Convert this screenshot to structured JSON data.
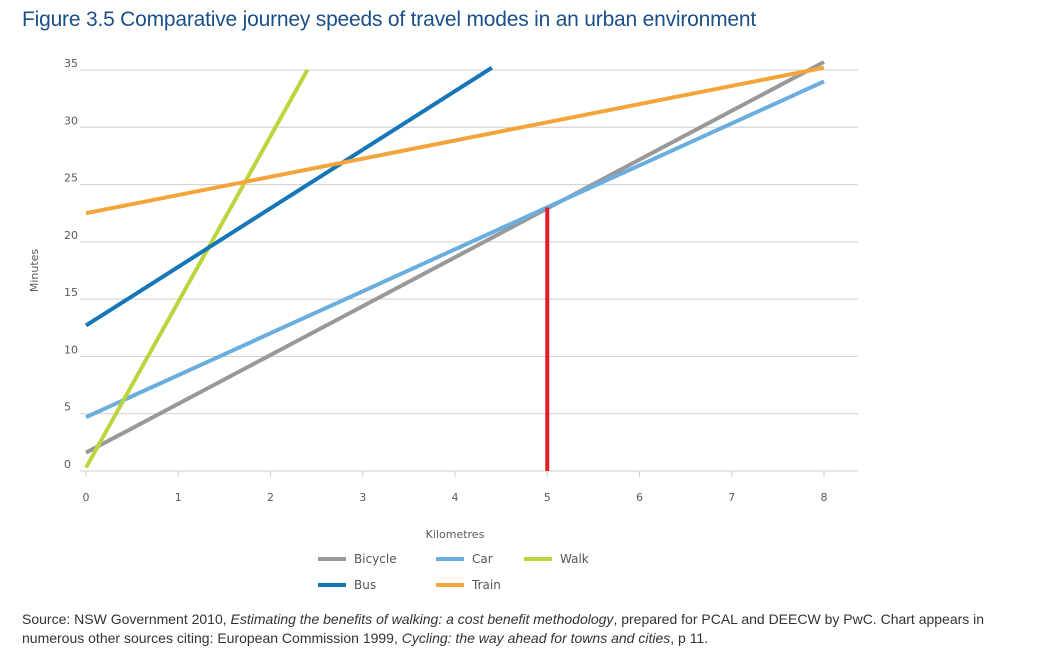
{
  "title": "Figure 3.5 Comparative journey speeds of travel modes in an urban environment",
  "source": {
    "prefix": "Source: NSW Government 2010, ",
    "italic1": "Estimating the benefits of walking: a cost benefit methodology",
    "middle": ", prepared for PCAL and DEECW by PwC. Chart appears in numerous other sources citing: European Commission 1999, ",
    "italic2": "Cycling: the way ahead for towns and cities",
    "suffix": ", p 11."
  },
  "chart_data": {
    "type": "line",
    "title": "",
    "xlabel": "Kilometres",
    "ylabel": "Minutes",
    "xlim": [
      0,
      8
    ],
    "ylim": [
      0,
      35
    ],
    "xticks": [
      0,
      1,
      2,
      3,
      4,
      5,
      6,
      7,
      8
    ],
    "yticks": [
      0,
      5,
      10,
      15,
      20,
      25,
      30,
      35
    ],
    "grid": "horizontal",
    "legend_position": "bottom",
    "series": [
      {
        "name": "Bicycle",
        "color": "#999999",
        "points": [
          [
            0,
            1.6
          ],
          [
            8,
            35.7
          ]
        ]
      },
      {
        "name": "Car",
        "color": "#6aaee0",
        "points": [
          [
            0,
            4.7
          ],
          [
            8,
            34.0
          ]
        ]
      },
      {
        "name": "Walk",
        "color": "#bfd33f",
        "points": [
          [
            0,
            0.3
          ],
          [
            2.4,
            35.0
          ]
        ]
      },
      {
        "name": "Bus",
        "color": "#1576b8",
        "points": [
          [
            0,
            12.7
          ],
          [
            4.4,
            35.2
          ]
        ]
      },
      {
        "name": "Train",
        "color": "#f3a43b",
        "points": [
          [
            0,
            22.5
          ],
          [
            8,
            35.2
          ]
        ]
      }
    ],
    "annotations": [
      {
        "type": "vertical-line",
        "color": "#e31e24",
        "x": 5,
        "y_from": 0,
        "y_to": 23.0
      }
    ],
    "legend_order": [
      [
        "Bicycle",
        "Car",
        "Walk"
      ],
      [
        "Bus",
        "Train"
      ]
    ]
  }
}
